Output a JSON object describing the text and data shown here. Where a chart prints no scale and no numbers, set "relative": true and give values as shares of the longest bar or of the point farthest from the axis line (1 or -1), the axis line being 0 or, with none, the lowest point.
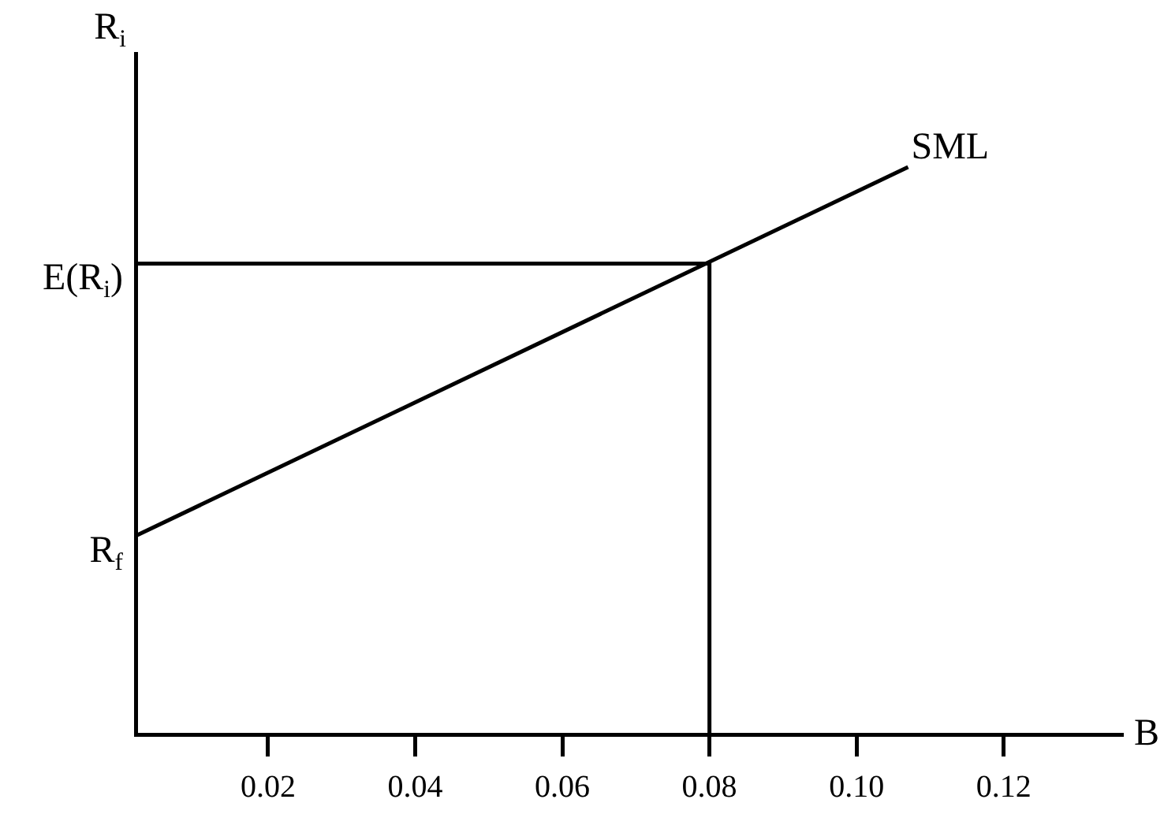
{
  "chart_data": {
    "type": "line",
    "relative": true,
    "xlabel": "B",
    "ylabel": "R$_{i}$",
    "xlim": [
      0.002,
      0.136
    ],
    "xticks": [
      0.02,
      0.04,
      0.06,
      0.08,
      {
        "value": 0.1,
        "label": "0.10"
      },
      0.12
    ],
    "tick_labels": "x",
    "grid": false,
    "legend": false,
    "marker": "none",
    "line_style": "solid",
    "series": [
      {
        "name": "SML",
        "color": "#000000",
        "x": [
          0.002,
          0.107
        ],
        "values": [
          0.35,
          1
        ]
      },
      {
        "color": "#000000",
        "x": [
          0.002,
          0.08,
          0.08
        ],
        "values": [
          0.83,
          0.83,
          0
        ]
      }
    ],
    "annotations": [
      {
        "text": "R$_{f}$",
        "x": 0.002,
        "y": 0.35
      },
      {
        "text": "E(R$_{i}$)",
        "x": 0.002,
        "y": 0.83
      }
    ]
  }
}
